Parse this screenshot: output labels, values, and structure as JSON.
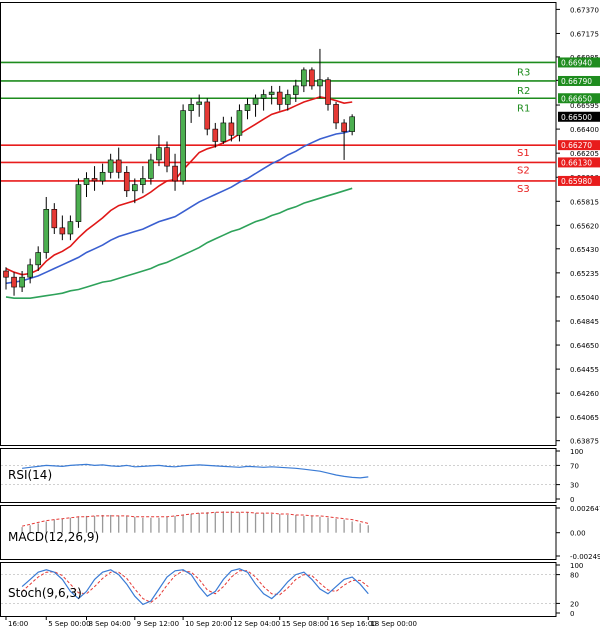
{
  "colors": {
    "background": "#ffffff",
    "frame": "#000000",
    "resistance": "#1e8c1e",
    "support": "#e81c1c",
    "ma_fast": "#e01818",
    "ma_mid": "#3a5fd0",
    "ma_slow": "#2ea25a",
    "bull_body": "#4caf50",
    "bear_body": "#e53935",
    "wick": "#000000",
    "rsi": "#3a7bd5",
    "macd_hist": "#999999",
    "macd_signal": "#e53935",
    "stoch_main": "#3a7bd5",
    "stoch_signal": "#e53935",
    "current_tag_bg": "#000000"
  },
  "chart_data": {
    "type": "candlestick",
    "main": {
      "y_ticks": [
        "0.67370",
        "0.67175",
        "0.66985",
        "0.66795",
        "0.66595",
        "0.66400",
        "0.66205",
        "0.66010",
        "0.65815",
        "0.65620",
        "0.65430",
        "0.65235",
        "0.65040",
        "0.64845",
        "0.64650",
        "0.64455",
        "0.64260",
        "0.64065",
        "0.63875"
      ],
      "ylim": [
        0.6384,
        0.6743
      ],
      "levels": [
        {
          "name": "R3",
          "value": 0.6694,
          "label": "0.66940",
          "kind": "resistance"
        },
        {
          "name": "R2",
          "value": 0.6679,
          "label": "0.66790",
          "kind": "resistance"
        },
        {
          "name": "R1",
          "value": 0.6665,
          "label": "0.66650",
          "kind": "resistance"
        },
        {
          "name": "S1",
          "value": 0.6627,
          "label": "0.66270",
          "kind": "support"
        },
        {
          "name": "S2",
          "value": 0.6613,
          "label": "0.66130",
          "kind": "support"
        },
        {
          "name": "S3",
          "value": 0.6598,
          "label": "0.65980",
          "kind": "support"
        }
      ],
      "current_price": {
        "value": 0.665,
        "label": "0.66500"
      },
      "candles": [
        {
          "o": 0.6525,
          "h": 0.6528,
          "l": 0.651,
          "c": 0.652
        },
        {
          "o": 0.652,
          "h": 0.6524,
          "l": 0.6505,
          "c": 0.6512
        },
        {
          "o": 0.6512,
          "h": 0.6525,
          "l": 0.6508,
          "c": 0.652
        },
        {
          "o": 0.652,
          "h": 0.6535,
          "l": 0.6515,
          "c": 0.653
        },
        {
          "o": 0.653,
          "h": 0.6545,
          "l": 0.6525,
          "c": 0.654
        },
        {
          "o": 0.654,
          "h": 0.6585,
          "l": 0.6535,
          "c": 0.6575
        },
        {
          "o": 0.6575,
          "h": 0.658,
          "l": 0.6555,
          "c": 0.656
        },
        {
          "o": 0.656,
          "h": 0.657,
          "l": 0.655,
          "c": 0.6555
        },
        {
          "o": 0.6555,
          "h": 0.657,
          "l": 0.655,
          "c": 0.6565
        },
        {
          "o": 0.6565,
          "h": 0.66,
          "l": 0.656,
          "c": 0.6595
        },
        {
          "o": 0.6595,
          "h": 0.6605,
          "l": 0.6585,
          "c": 0.66
        },
        {
          "o": 0.66,
          "h": 0.661,
          "l": 0.659,
          "c": 0.6598
        },
        {
          "o": 0.6598,
          "h": 0.6612,
          "l": 0.6595,
          "c": 0.6605
        },
        {
          "o": 0.6605,
          "h": 0.662,
          "l": 0.66,
          "c": 0.6615
        },
        {
          "o": 0.6615,
          "h": 0.6625,
          "l": 0.66,
          "c": 0.6605
        },
        {
          "o": 0.6605,
          "h": 0.661,
          "l": 0.6585,
          "c": 0.659
        },
        {
          "o": 0.659,
          "h": 0.66,
          "l": 0.658,
          "c": 0.6595
        },
        {
          "o": 0.6595,
          "h": 0.661,
          "l": 0.6588,
          "c": 0.66
        },
        {
          "o": 0.66,
          "h": 0.662,
          "l": 0.6595,
          "c": 0.6615
        },
        {
          "o": 0.6615,
          "h": 0.6635,
          "l": 0.661,
          "c": 0.6625
        },
        {
          "o": 0.6625,
          "h": 0.663,
          "l": 0.6605,
          "c": 0.661
        },
        {
          "o": 0.661,
          "h": 0.662,
          "l": 0.659,
          "c": 0.6598
        },
        {
          "o": 0.6598,
          "h": 0.666,
          "l": 0.6595,
          "c": 0.6655
        },
        {
          "o": 0.6655,
          "h": 0.6665,
          "l": 0.6645,
          "c": 0.666
        },
        {
          "o": 0.666,
          "h": 0.6668,
          "l": 0.665,
          "c": 0.6662
        },
        {
          "o": 0.6662,
          "h": 0.6665,
          "l": 0.6635,
          "c": 0.664
        },
        {
          "o": 0.664,
          "h": 0.6645,
          "l": 0.6625,
          "c": 0.663
        },
        {
          "o": 0.663,
          "h": 0.665,
          "l": 0.6628,
          "c": 0.6645
        },
        {
          "o": 0.6645,
          "h": 0.665,
          "l": 0.663,
          "c": 0.6635
        },
        {
          "o": 0.6635,
          "h": 0.666,
          "l": 0.663,
          "c": 0.6655
        },
        {
          "o": 0.6655,
          "h": 0.6665,
          "l": 0.6648,
          "c": 0.666
        },
        {
          "o": 0.666,
          "h": 0.6668,
          "l": 0.665,
          "c": 0.6665
        },
        {
          "o": 0.6665,
          "h": 0.6672,
          "l": 0.6655,
          "c": 0.6668
        },
        {
          "o": 0.6668,
          "h": 0.6675,
          "l": 0.666,
          "c": 0.667
        },
        {
          "o": 0.667,
          "h": 0.6675,
          "l": 0.6655,
          "c": 0.666
        },
        {
          "o": 0.666,
          "h": 0.6672,
          "l": 0.6655,
          "c": 0.6668
        },
        {
          "o": 0.6668,
          "h": 0.668,
          "l": 0.6662,
          "c": 0.6675
        },
        {
          "o": 0.6675,
          "h": 0.669,
          "l": 0.667,
          "c": 0.6688
        },
        {
          "o": 0.6688,
          "h": 0.669,
          "l": 0.6672,
          "c": 0.6675
        },
        {
          "o": 0.6675,
          "h": 0.6705,
          "l": 0.6665,
          "c": 0.668
        },
        {
          "o": 0.668,
          "h": 0.6682,
          "l": 0.6655,
          "c": 0.666
        },
        {
          "o": 0.666,
          "h": 0.6662,
          "l": 0.664,
          "c": 0.6645
        },
        {
          "o": 0.6645,
          "h": 0.6648,
          "l": 0.6615,
          "c": 0.6638
        },
        {
          "o": 0.6638,
          "h": 0.6652,
          "l": 0.6635,
          "c": 0.665
        }
      ],
      "ma_fast": [
        0.6527,
        0.6524,
        0.6522,
        0.6523,
        0.6526,
        0.6533,
        0.6538,
        0.6541,
        0.6545,
        0.6552,
        0.6558,
        0.6563,
        0.6568,
        0.6574,
        0.6578,
        0.658,
        0.6582,
        0.6585,
        0.6589,
        0.6594,
        0.6598,
        0.6599,
        0.6607,
        0.6614,
        0.6621,
        0.6624,
        0.6626,
        0.6629,
        0.6632,
        0.6636,
        0.664,
        0.6644,
        0.6648,
        0.6652,
        0.6654,
        0.6656,
        0.6659,
        0.6662,
        0.6664,
        0.6666,
        0.6665,
        0.6663,
        0.6661,
        0.6662
      ],
      "ma_mid": [
        0.6515,
        0.6516,
        0.6517,
        0.6519,
        0.6521,
        0.6524,
        0.6527,
        0.653,
        0.6533,
        0.6536,
        0.654,
        0.6543,
        0.6546,
        0.655,
        0.6553,
        0.6555,
        0.6557,
        0.6559,
        0.6562,
        0.6565,
        0.6567,
        0.6569,
        0.6573,
        0.6577,
        0.6581,
        0.6584,
        0.6587,
        0.659,
        0.6593,
        0.6597,
        0.66,
        0.6604,
        0.6608,
        0.6612,
        0.6615,
        0.6619,
        0.6622,
        0.6626,
        0.6629,
        0.6632,
        0.6634,
        0.6636,
        0.6637,
        0.6639
      ],
      "ma_slow": [
        0.6504,
        0.6503,
        0.6503,
        0.6503,
        0.6504,
        0.6505,
        0.6506,
        0.6507,
        0.6509,
        0.651,
        0.6512,
        0.6514,
        0.6516,
        0.6517,
        0.6519,
        0.6521,
        0.6523,
        0.6525,
        0.6527,
        0.653,
        0.6532,
        0.6535,
        0.6538,
        0.6541,
        0.6544,
        0.6548,
        0.6551,
        0.6554,
        0.6557,
        0.6559,
        0.6562,
        0.6565,
        0.6567,
        0.657,
        0.6572,
        0.6575,
        0.6577,
        0.658,
        0.6582,
        0.6584,
        0.6586,
        0.6588,
        0.659,
        0.6592
      ]
    },
    "x_ticks": [
      {
        "i": 0,
        "label": "16:00"
      },
      {
        "i": 5,
        "label": "5 Sep 00:00"
      },
      {
        "i": 10,
        "label": "8 Sep 04:00"
      },
      {
        "i": 16,
        "label": "9 Sep 12:00"
      },
      {
        "i": 22,
        "label": "10 Sep 20:00"
      },
      {
        "i": 28,
        "label": "12 Sep 04:00"
      },
      {
        "i": 34,
        "label": "15 Sep 08:00"
      },
      {
        "i": 40,
        "label": "16 Sep 16:00"
      },
      {
        "i": 45,
        "label": "18 Sep 00:00"
      }
    ],
    "rsi": {
      "title": "RSI(14)",
      "ylim": [
        0,
        100
      ],
      "y_ticks": [
        "100",
        "70",
        "30",
        "0"
      ],
      "values": [
        64,
        66,
        68,
        70,
        69,
        68,
        70,
        71,
        72,
        70,
        71,
        69,
        68,
        70,
        67,
        68,
        69,
        70,
        68,
        67,
        69,
        70,
        71,
        70,
        69,
        68,
        67,
        66,
        68,
        67,
        66,
        67,
        66,
        65,
        64,
        62,
        60,
        58,
        54,
        50,
        47,
        45,
        44,
        46
      ]
    },
    "macd": {
      "title": "MACD(12,26,9)",
      "y_ticks": [
        "0.002647",
        "0.00",
        "-0.002496"
      ],
      "ylim": [
        -0.002496,
        0.002647
      ],
      "hist": [
        0.0006,
        0.0008,
        0.001,
        0.0012,
        0.0014,
        0.0015,
        0.0016,
        0.0017,
        0.0018,
        0.0018,
        0.0019,
        0.0019,
        0.0018,
        0.0018,
        0.0017,
        0.0016,
        0.0016,
        0.0016,
        0.0017,
        0.0018,
        0.0019,
        0.002,
        0.0021,
        0.0022,
        0.0022,
        0.0023,
        0.0023,
        0.0022,
        0.0022,
        0.0021,
        0.0021,
        0.002,
        0.002,
        0.0019,
        0.0019,
        0.0018,
        0.0018,
        0.0017,
        0.0016,
        0.0015,
        0.0014,
        0.0012,
        0.001,
        0.0008
      ],
      "signal": [
        0.0007,
        0.0009,
        0.0011,
        0.0013,
        0.0014,
        0.0015,
        0.0016,
        0.0017,
        0.0017,
        0.0018,
        0.0018,
        0.0018,
        0.0018,
        0.0018,
        0.0017,
        0.0017,
        0.0017,
        0.0017,
        0.0017,
        0.0018,
        0.0019,
        0.002,
        0.0021,
        0.0021,
        0.0022,
        0.0022,
        0.0022,
        0.0022,
        0.0022,
        0.0021,
        0.0021,
        0.0021,
        0.002,
        0.002,
        0.0019,
        0.0019,
        0.0018,
        0.0018,
        0.0017,
        0.0016,
        0.0015,
        0.0014,
        0.0012,
        0.001
      ]
    },
    "stoch": {
      "title": "Stoch(9,6,3)",
      "ylim": [
        0,
        100
      ],
      "y_ticks": [
        "100",
        "80",
        "20",
        "0"
      ],
      "main": [
        55,
        70,
        85,
        90,
        85,
        70,
        45,
        30,
        45,
        70,
        85,
        90,
        80,
        60,
        35,
        18,
        25,
        50,
        75,
        88,
        90,
        80,
        55,
        35,
        45,
        70,
        88,
        92,
        85,
        60,
        40,
        30,
        45,
        65,
        80,
        85,
        70,
        50,
        40,
        55,
        70,
        75,
        60,
        40
      ],
      "signal": [
        45,
        60,
        75,
        85,
        86,
        78,
        60,
        42,
        40,
        55,
        72,
        85,
        85,
        72,
        50,
        30,
        22,
        35,
        58,
        78,
        88,
        85,
        70,
        48,
        40,
        55,
        75,
        88,
        88,
        75,
        55,
        40,
        38,
        52,
        70,
        80,
        78,
        62,
        48,
        45,
        58,
        68,
        68,
        55
      ]
    }
  }
}
